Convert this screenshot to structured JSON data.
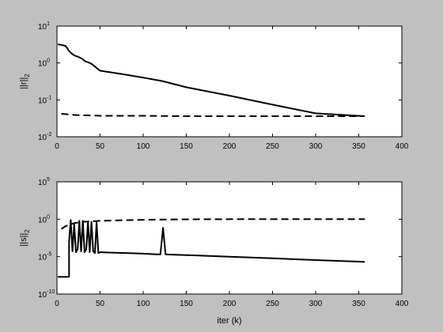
{
  "figure": {
    "background": "#c0c0c0",
    "axes_background": "#ffffff",
    "line_color": "#000000"
  },
  "chart_data": [
    {
      "type": "line",
      "title": "",
      "xlabel": "",
      "ylabel": "||r||",
      "ylabel_sub": "2",
      "xlim": [
        0,
        400
      ],
      "ylim": [
        0.01,
        10
      ],
      "yscale": "log",
      "grid": false,
      "x_ticks": [
        "0",
        "50",
        "100",
        "150",
        "200",
        "250",
        "300",
        "350",
        "400"
      ],
      "x_tick_values": [
        0,
        50,
        100,
        150,
        200,
        250,
        300,
        350,
        400
      ],
      "y_ticks": [
        {
          "base": "10",
          "exp": "-2",
          "value": 0.01
        },
        {
          "base": "10",
          "exp": "-1",
          "value": 0.1
        },
        {
          "base": "10",
          "exp": "0",
          "value": 1
        },
        {
          "base": "10",
          "exp": "1",
          "value": 10
        }
      ],
      "series": [
        {
          "style": "solid",
          "x": [
            1,
            5,
            10,
            12,
            14,
            16,
            20,
            25,
            28,
            30,
            33,
            36,
            40,
            44,
            47,
            50,
            60,
            80,
            100,
            120,
            125,
            150,
            200,
            250,
            300,
            357
          ],
          "y": [
            3.2,
            3.1,
            2.9,
            2.5,
            2.1,
            1.9,
            1.6,
            1.45,
            1.35,
            1.25,
            1.1,
            1.05,
            0.95,
            0.8,
            0.7,
            0.62,
            0.57,
            0.48,
            0.4,
            0.33,
            0.31,
            0.22,
            0.13,
            0.074,
            0.043,
            0.036
          ]
        },
        {
          "style": "dashed",
          "x": [
            5,
            10,
            20,
            30,
            40,
            50,
            100,
            150,
            200,
            250,
            300,
            357
          ],
          "y": [
            0.042,
            0.041,
            0.039,
            0.038,
            0.038,
            0.037,
            0.037,
            0.036,
            0.036,
            0.036,
            0.036,
            0.036
          ]
        }
      ]
    },
    {
      "type": "line",
      "title": "",
      "xlabel": "iter (k)",
      "ylabel": "||s||",
      "ylabel_sub": "2",
      "xlim": [
        0,
        400
      ],
      "ylim": [
        1e-10,
        100000
      ],
      "yscale": "log",
      "grid": false,
      "x_ticks": [
        "0",
        "50",
        "100",
        "150",
        "200",
        "250",
        "300",
        "350",
        "400"
      ],
      "x_tick_values": [
        0,
        50,
        100,
        150,
        200,
        250,
        300,
        350,
        400
      ],
      "y_ticks": [
        {
          "base": "10",
          "exp": "-10",
          "value": 1e-10
        },
        {
          "base": "10",
          "exp": "-5",
          "value": 1e-05
        },
        {
          "base": "10",
          "exp": "0",
          "value": 1
        },
        {
          "base": "10",
          "exp": "5",
          "value": 100000
        }
      ],
      "series": [
        {
          "style": "solid",
          "x": [
            1,
            14,
            14,
            16,
            18,
            20,
            22,
            24,
            26,
            28,
            30,
            32,
            34,
            36,
            38,
            40,
            42,
            44,
            46,
            48,
            50,
            60,
            80,
            100,
            115,
            120,
            123,
            126,
            130,
            150,
            200,
            250,
            300,
            357
          ],
          "y": [
            2e-08,
            2e-08,
            0.001,
            0.8,
            5e-05,
            0.2,
            4e-05,
            0.0001,
            0.6,
            5e-05,
            0.6,
            4e-05,
            0.0001,
            0.5,
            4e-05,
            0.45,
            5e-05,
            3e-05,
            0.4,
            3e-05,
            4e-05,
            3.5e-05,
            3e-05,
            2.5e-05,
            2e-05,
            2e-05,
            0.07,
            2e-05,
            1.9e-05,
            1.6e-05,
            1e-05,
            6e-06,
            3.5e-06,
            2e-06
          ]
        },
        {
          "style": "dashed",
          "x": [
            5,
            10,
            20,
            30,
            50,
            100,
            150,
            200,
            250,
            300,
            357
          ],
          "y": [
            0.05,
            0.12,
            0.3,
            0.45,
            0.6,
            0.85,
            0.95,
            1,
            1,
            1,
            1
          ]
        }
      ]
    }
  ]
}
